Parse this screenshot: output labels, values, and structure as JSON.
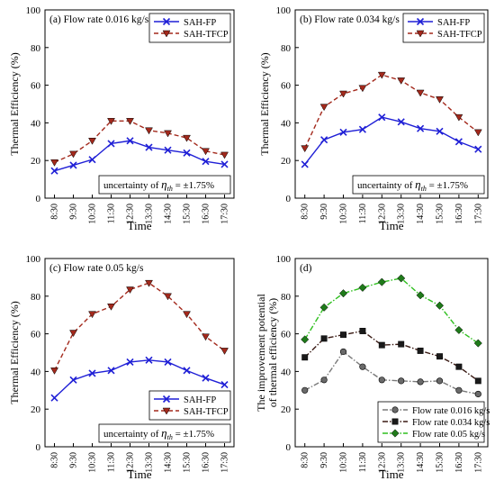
{
  "chart_data": [
    {
      "type": "line",
      "panel": "a",
      "title": "(a) Flow rate 0.016 kg/s",
      "xlabel": "Time",
      "ylabel": "Thermal Efficiency (%)",
      "categories": [
        "8:30",
        "9:30",
        "10:30",
        "11:30",
        "12:30",
        "13:30",
        "14:30",
        "15:30",
        "16:30",
        "17:30"
      ],
      "ylim": [
        0,
        100
      ],
      "yticks": [
        "0",
        "20",
        "40",
        "60",
        "80",
        "100"
      ],
      "legend_position": "top-right",
      "annotation": {
        "prefix": "uncertainty of ",
        "symbol": "η",
        "subscript": "th",
        "suffix": " = ±1.75%"
      },
      "series": [
        {
          "name": "SAH-FP",
          "color": "#1f1fd6",
          "marker": "x",
          "dash": "solid",
          "values": [
            14.5,
            17.5,
            20.5,
            29,
            30.5,
            27,
            25.5,
            24,
            19.5,
            18
          ]
        },
        {
          "name": "SAH-TFCP",
          "color": "#a3291c",
          "marker": "triangle-down",
          "dash": "dashed",
          "values": [
            19,
            23.5,
            30.5,
            41,
            41,
            36,
            34.5,
            32,
            25,
            23
          ]
        }
      ]
    },
    {
      "type": "line",
      "panel": "b",
      "title": "(b) Flow rate 0.034 kg/s",
      "xlabel": "Time",
      "ylabel": "Thermal Efficiency (%)",
      "categories": [
        "8:30",
        "9:30",
        "10:30",
        "11:30",
        "12:30",
        "13:30",
        "14:30",
        "15:30",
        "16:30",
        "17:30"
      ],
      "ylim": [
        0,
        100
      ],
      "yticks": [
        "0",
        "20",
        "40",
        "60",
        "80",
        "100"
      ],
      "legend_position": "top-right",
      "annotation": {
        "prefix": "uncertainty of ",
        "symbol": "η",
        "subscript": "th",
        "suffix": " = ±1.75%"
      },
      "series": [
        {
          "name": "SAH-FP",
          "color": "#1f1fd6",
          "marker": "x",
          "dash": "solid",
          "values": [
            18,
            31,
            35,
            36.5,
            43,
            40.5,
            37,
            35.5,
            30,
            26
          ]
        },
        {
          "name": "SAH-TFCP",
          "color": "#a3291c",
          "marker": "triangle-down",
          "dash": "dashed",
          "values": [
            26.5,
            48.5,
            55.5,
            58.5,
            65.5,
            62.5,
            56,
            52.5,
            43,
            35
          ]
        }
      ]
    },
    {
      "type": "line",
      "panel": "c",
      "title": "(c) Flow rate 0.05 kg/s",
      "xlabel": "Time",
      "ylabel": "Thermal Efficiency (%)",
      "categories": [
        "8:30",
        "9:30",
        "10:30",
        "11:30",
        "12:30",
        "13:30",
        "14:30",
        "15:30",
        "16:30",
        "17:30"
      ],
      "ylim": [
        0,
        100
      ],
      "yticks": [
        "0",
        "20",
        "40",
        "60",
        "80",
        "100"
      ],
      "legend_position": "bottom-right",
      "annotation": {
        "prefix": "uncertainty of ",
        "symbol": "η",
        "subscript": "th",
        "suffix": " = ±1.75%"
      },
      "series": [
        {
          "name": "SAH-FP",
          "color": "#1f1fd6",
          "marker": "x",
          "dash": "solid",
          "values": [
            26,
            35.5,
            39,
            40.5,
            45,
            46,
            45,
            40.5,
            36.5,
            33
          ]
        },
        {
          "name": "SAH-TFCP",
          "color": "#a3291c",
          "marker": "triangle-down",
          "dash": "dashed",
          "values": [
            40.5,
            60.5,
            70.5,
            74.5,
            83.5,
            87,
            80,
            70.5,
            58.5,
            51
          ]
        }
      ]
    },
    {
      "type": "line",
      "panel": "d",
      "title": "(d)",
      "xlabel": "Time",
      "ylabel": "The improvement potential of thermal efficiency (%)",
      "ylabel_lines": [
        "The improvement potential",
        "of thermal efficiency (%)"
      ],
      "categories": [
        "8:30",
        "9:30",
        "10:30",
        "11:30",
        "12:30",
        "13:30",
        "14:30",
        "15:30",
        "16:30",
        "17:30"
      ],
      "ylim": [
        0,
        100
      ],
      "yticks": [
        "0",
        "20",
        "40",
        "60",
        "80",
        "100"
      ],
      "legend_position": "bottom-right",
      "series": [
        {
          "name": "Flow rate 0.016 kg/s",
          "color": "#7a7a7a",
          "marker": "circle",
          "dash": "dashdot",
          "values": [
            30,
            35.5,
            50.5,
            42.5,
            35.5,
            35,
            34.5,
            35,
            30,
            28
          ]
        },
        {
          "name": "Flow rate 0.034 kg/s",
          "color": "#3a1a14",
          "marker": "square",
          "dash": "dashdot",
          "values": [
            47.5,
            57.5,
            59.5,
            61.5,
            54,
            54.5,
            51,
            48,
            42.5,
            35
          ]
        },
        {
          "name": "Flow rate 0.05 kg/s",
          "color": "#2fbf1f",
          "marker": "diamond",
          "dash": "dashdot",
          "values": [
            57,
            74,
            81.5,
            84.5,
            87.5,
            89.5,
            80.5,
            75,
            62,
            55
          ]
        }
      ]
    }
  ]
}
